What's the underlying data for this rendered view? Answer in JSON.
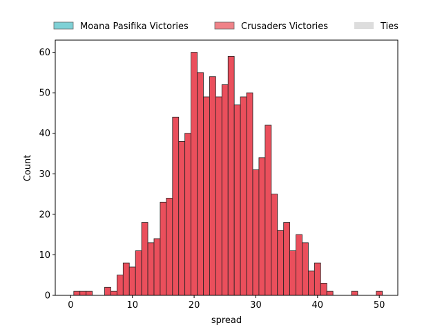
{
  "chart_data": {
    "type": "bar",
    "subtype": "histogram",
    "xlabel": "spread",
    "ylabel": "Count",
    "xlim": [
      -2.5,
      53
    ],
    "ylim": [
      0,
      63
    ],
    "xticks": [
      0,
      10,
      20,
      30,
      40,
      50
    ],
    "yticks": [
      0,
      10,
      20,
      30,
      40,
      50,
      60
    ],
    "grid": false,
    "legend": {
      "placement": "top",
      "entries": [
        {
          "label": "Moana Pasifika Victories",
          "color": "#7fd1d6"
        },
        {
          "label": "Crusaders Victories",
          "color": "#f08288"
        },
        {
          "label": "Ties",
          "color": "#dddddd"
        }
      ]
    },
    "bar_color": "#ea4f5c",
    "edge_color": "#222222",
    "bin_start": 0.5,
    "bin_width": 1,
    "counts": [
      1,
      1,
      1,
      0,
      0,
      2,
      1,
      5,
      8,
      7,
      11,
      18,
      13,
      14,
      23,
      24,
      44,
      38,
      40,
      60,
      55,
      49,
      54,
      49,
      52,
      59,
      47,
      49,
      50,
      31,
      34,
      42,
      25,
      16,
      18,
      11,
      15,
      13,
      6,
      8,
      3,
      1,
      0,
      0,
      0,
      1,
      0,
      0,
      0,
      1
    ]
  }
}
